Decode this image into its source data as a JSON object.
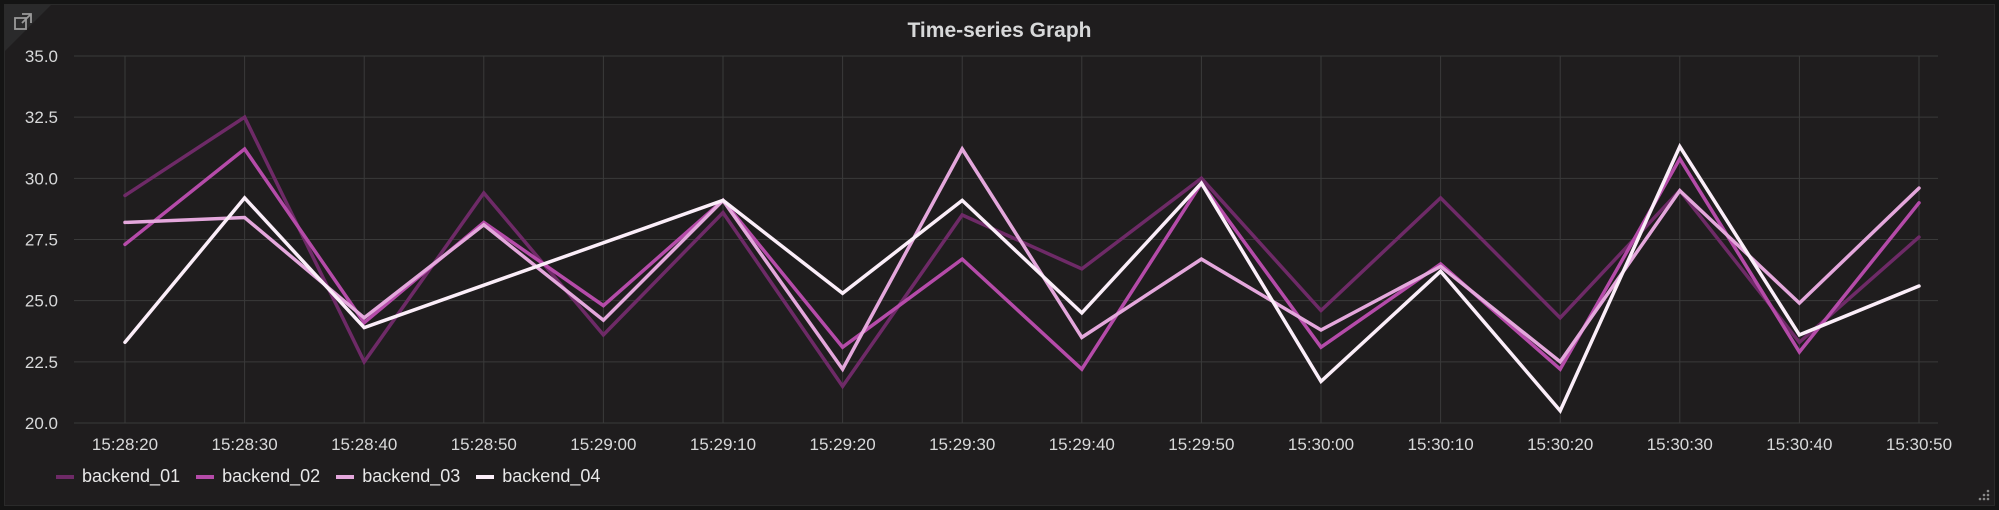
{
  "panel": {
    "title": "Time-series Graph",
    "share_icon": "external-link-icon",
    "resize_icon": "resize-grip-icon"
  },
  "colors": {
    "background": "#1f1d1e",
    "grid": "#3a3a3a",
    "text": "#d8d9da"
  },
  "chart_data": {
    "type": "line",
    "title": "Time-series Graph",
    "xlabel": "",
    "ylabel": "",
    "grid": true,
    "legend_placement": "bottom-left",
    "ylim": [
      20.0,
      35.0
    ],
    "yticks": [
      "20.0",
      "22.5",
      "25.0",
      "27.5",
      "30.0",
      "32.5",
      "35.0"
    ],
    "x": [
      "15:28:20",
      "15:28:30",
      "15:28:40",
      "15:28:50",
      "15:29:00",
      "15:29:10",
      "15:29:20",
      "15:29:30",
      "15:29:40",
      "15:29:50",
      "15:30:00",
      "15:30:10",
      "15:30:20",
      "15:30:30",
      "15:30:40",
      "15:30:50"
    ],
    "series": [
      {
        "name": "backend_01",
        "color": "#6e2a67",
        "values": [
          29.3,
          32.5,
          22.5,
          29.4,
          23.6,
          28.6,
          21.5,
          28.5,
          26.3,
          30.0,
          24.6,
          29.2,
          24.3,
          29.5,
          23.3,
          27.6
        ]
      },
      {
        "name": "backend_02",
        "color": "#b54ba9",
        "values": [
          27.3,
          31.2,
          24.1,
          28.2,
          24.8,
          29.1,
          23.1,
          26.7,
          22.2,
          29.8,
          23.1,
          26.5,
          22.2,
          30.8,
          22.9,
          29.0
        ]
      },
      {
        "name": "backend_03",
        "color": "#e4a7dc",
        "values": [
          28.2,
          28.4,
          24.3,
          28.1,
          24.2,
          29.1,
          22.2,
          31.2,
          23.5,
          26.7,
          23.8,
          26.4,
          22.5,
          29.5,
          24.9,
          29.6
        ]
      },
      {
        "name": "backend_04",
        "color": "#fbeef9",
        "values": [
          23.3,
          29.2,
          23.9,
          null,
          null,
          29.1,
          25.3,
          29.1,
          24.5,
          29.8,
          21.7,
          26.2,
          20.5,
          31.3,
          23.6,
          25.6
        ]
      }
    ]
  }
}
